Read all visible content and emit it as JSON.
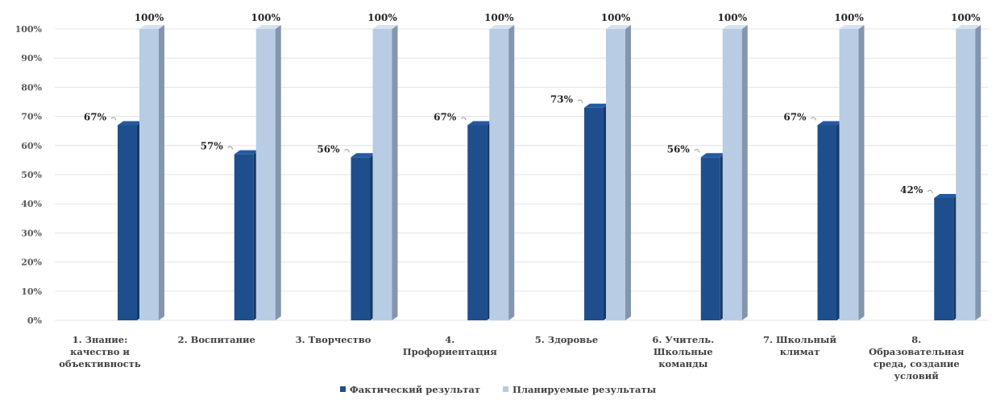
{
  "chart_data": {
    "type": "bar",
    "title": "",
    "categories": [
      [
        "1. Знание:",
        "качество и",
        "объективность"
      ],
      [
        "2. Воспитание"
      ],
      [
        "3. Творчество"
      ],
      [
        "4.",
        "Профориентация"
      ],
      [
        "5. Здоровье"
      ],
      [
        "6. Учитель.",
        "Школьные",
        "команды"
      ],
      [
        "7. Школьный",
        "климат"
      ],
      [
        "8.",
        "Образовательная",
        "среда, создание",
        "условий"
      ]
    ],
    "series": [
      {
        "name": "Фактический результат",
        "values": [
          67,
          57,
          56,
          67,
          73,
          56,
          67,
          42
        ],
        "labels": [
          "67%",
          "57%",
          "56%",
          "67%",
          "73%",
          "56%",
          "67%",
          "42%"
        ]
      },
      {
        "name": "Планируемые результаты",
        "values": [
          100,
          100,
          100,
          100,
          100,
          100,
          100,
          100
        ],
        "labels": [
          "100%",
          "100%",
          "100%",
          "100%",
          "100%",
          "100%",
          "100%",
          "100%"
        ]
      }
    ],
    "yticks": [
      "0%",
      "10%",
      "20%",
      "30%",
      "40%",
      "50%",
      "60%",
      "70%",
      "80%",
      "90%",
      "100%"
    ],
    "ylim": [
      0,
      100
    ],
    "grid": true,
    "legend_position": "bottom",
    "colors": [
      "#1f4e8c",
      "#b8cce4"
    ]
  }
}
